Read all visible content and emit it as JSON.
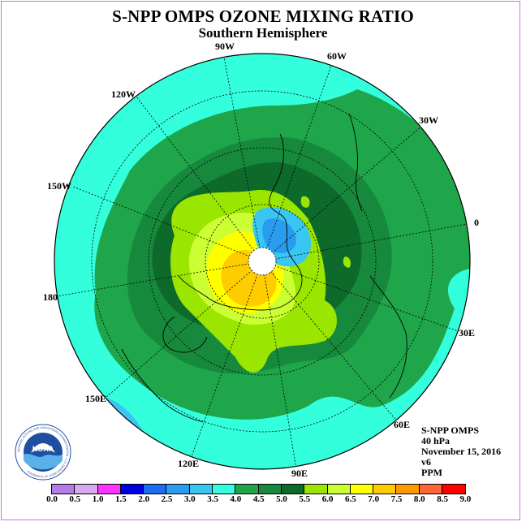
{
  "title": "S-NPP OMPS OZONE MIXING RATIO",
  "subtitle": "Southern Hemisphere",
  "longitude_labels": [
    "90W",
    "60W",
    "30W",
    "0",
    "30E",
    "60E",
    "90E",
    "120E",
    "150E",
    "180",
    "150W",
    "120W"
  ],
  "info": {
    "instrument": "S-NPP OMPS",
    "level": "40 hPa",
    "date": "November 15, 2016",
    "version": "v6",
    "units": "PPM"
  },
  "colorbar": {
    "ticks": [
      "0.0",
      "0.5",
      "1.0",
      "1.5",
      "2.0",
      "2.5",
      "3.0",
      "3.5",
      "4.0",
      "4.5",
      "5.0",
      "5.5",
      "6.0",
      "6.5",
      "7.0",
      "7.5",
      "8.0",
      "8.5",
      "9.0"
    ],
    "colors": [
      "#b57be6",
      "#d8a8f0",
      "#ff33ff",
      "#0000e6",
      "#1e6cf0",
      "#2a9cf0",
      "#39c6f2",
      "#33ffdd",
      "#1fa64a",
      "#17893d",
      "#0d6a2b",
      "#9be600",
      "#ccff33",
      "#ffff00",
      "#ffcc00",
      "#ff9900",
      "#ff6633",
      "#ff0000",
      "#8b5a3c"
    ]
  },
  "logo_text": "NOAA",
  "logo_ring_text": "NATIONAL OCEANIC AND ATMOSPHERIC ADMINISTRATION · U.S. DEPARTMENT OF COMMERCE"
}
